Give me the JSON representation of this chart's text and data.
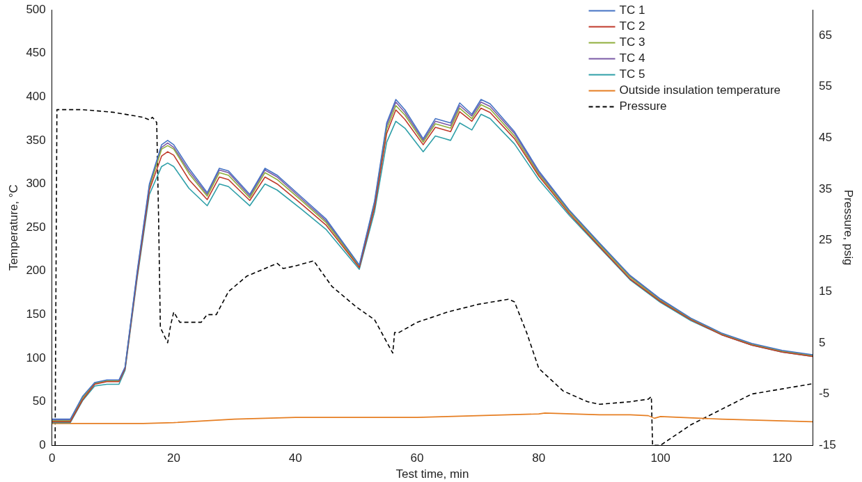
{
  "chart_data": {
    "type": "line",
    "xlabel": "Test time, min",
    "ylabel": "Temperature, °C",
    "y2label": "Pressure, psig",
    "xlim": [
      0,
      125
    ],
    "xticks": [
      0,
      20,
      40,
      60,
      80,
      100,
      120
    ],
    "ylim": [
      0,
      500
    ],
    "yticks": [
      0,
      50,
      100,
      150,
      200,
      250,
      300,
      350,
      400,
      450,
      500
    ],
    "y2lim": [
      -15,
      70
    ],
    "y2ticks": [
      -15,
      -5,
      5,
      15,
      25,
      35,
      45,
      55,
      65
    ],
    "grid": false,
    "legend": "top right",
    "marker": "none",
    "series": [
      {
        "name": "TC 1",
        "color": "#4472c4",
        "x": [
          0,
          3,
          5,
          7,
          9,
          11,
          12,
          14,
          16,
          18,
          19,
          20,
          22.5,
          25.5,
          27.5,
          29,
          32.5,
          35,
          37,
          41,
          45,
          50.5,
          53,
          55,
          56.5,
          58,
          61,
          63,
          64.5,
          65.5,
          67,
          69,
          70.5,
          72,
          76,
          80,
          85,
          90,
          95,
          100,
          105,
          110,
          115,
          120,
          125
        ],
        "values": [
          30,
          30,
          56,
          72,
          75,
          75,
          90,
          200,
          300,
          345,
          350,
          345,
          318,
          290,
          318,
          315,
          288,
          318,
          310,
          285,
          260,
          207,
          280,
          370,
          397,
          385,
          352,
          375,
          372,
          370,
          393,
          380,
          397,
          392,
          360,
          315,
          270,
          232,
          195,
          168,
          146,
          129,
          117,
          109,
          104
        ]
      },
      {
        "name": "TC 2",
        "color": "#c0392b",
        "x": [
          0,
          3,
          5,
          7,
          9,
          11,
          12,
          14,
          16,
          18,
          19,
          20,
          22.5,
          25.5,
          27.5,
          29,
          32.5,
          35,
          37,
          41,
          45,
          50.5,
          53,
          55,
          56.5,
          58,
          61,
          63,
          64.5,
          65.5,
          67,
          69,
          70.5,
          72,
          76,
          80,
          85,
          90,
          95,
          100,
          105,
          110,
          115,
          120,
          125
        ],
        "values": [
          27,
          27,
          52,
          70,
          73,
          73,
          88,
          195,
          293,
          332,
          337,
          333,
          305,
          282,
          308,
          305,
          281,
          308,
          300,
          277,
          253,
          204,
          273,
          358,
          385,
          374,
          345,
          365,
          362,
          360,
          383,
          372,
          387,
          382,
          352,
          309,
          266,
          228,
          191,
          165,
          144,
          127,
          115,
          107,
          102
        ]
      },
      {
        "name": "TC 3",
        "color": "#8fae3c",
        "x": [
          0,
          3,
          5,
          7,
          9,
          11,
          12,
          14,
          16,
          18,
          19,
          20,
          22.5,
          25.5,
          27.5,
          29,
          32.5,
          35,
          37,
          41,
          45,
          50.5,
          53,
          55,
          56.5,
          58,
          61,
          63,
          64.5,
          65.5,
          67,
          69,
          70.5,
          72,
          76,
          80,
          85,
          90,
          95,
          100,
          105,
          110,
          115,
          120,
          125
        ],
        "values": [
          28,
          28,
          54,
          71,
          74,
          74,
          89,
          197,
          296,
          340,
          344,
          340,
          312,
          286,
          313,
          310,
          284,
          313,
          305,
          281,
          256,
          205,
          276,
          363,
          390,
          379,
          348,
          369,
          366,
          364,
          387,
          375,
          391,
          386,
          355,
          311,
          268,
          230,
          193,
          166,
          145,
          128,
          116,
          108,
          103
        ]
      },
      {
        "name": "TC 4",
        "color": "#7b5aa6",
        "x": [
          0,
          3,
          5,
          7,
          9,
          11,
          12,
          14,
          16,
          18,
          19,
          20,
          22.5,
          25.5,
          27.5,
          29,
          32.5,
          35,
          37,
          41,
          45,
          50.5,
          53,
          55,
          56.5,
          58,
          61,
          63,
          64.5,
          65.5,
          67,
          69,
          70.5,
          72,
          76,
          80,
          85,
          90,
          95,
          100,
          105,
          110,
          115,
          120,
          125
        ],
        "values": [
          29,
          29,
          55,
          71,
          74,
          74,
          89,
          198,
          298,
          342,
          347,
          342,
          315,
          288,
          316,
          313,
          286,
          316,
          308,
          283,
          258,
          206,
          278,
          367,
          394,
          382,
          350,
          372,
          369,
          367,
          390,
          378,
          394,
          389,
          358,
          313,
          269,
          231,
          194,
          167,
          145,
          128,
          116,
          108,
          103
        ]
      },
      {
        "name": "TC 5",
        "color": "#2e9fa8",
        "x": [
          0,
          3,
          5,
          7,
          9,
          11,
          12,
          14,
          16,
          18,
          19,
          20,
          22.5,
          25.5,
          27.5,
          29,
          32.5,
          35,
          37,
          41,
          45,
          50.5,
          53,
          55,
          56.5,
          58,
          61,
          63,
          64.5,
          65.5,
          67,
          69,
          70.5,
          72,
          76,
          80,
          85,
          90,
          95,
          100,
          105,
          110,
          115,
          120,
          125
        ],
        "values": [
          26,
          26,
          51,
          68,
          70,
          70,
          86,
          192,
          288,
          320,
          324,
          320,
          295,
          275,
          300,
          297,
          275,
          300,
          293,
          271,
          248,
          202,
          268,
          348,
          372,
          364,
          337,
          355,
          352,
          350,
          370,
          362,
          380,
          375,
          346,
          305,
          264,
          227,
          190,
          164,
          143,
          127,
          115,
          107,
          102
        ]
      },
      {
        "name": "Outside insulation temperature",
        "color": "#e67e22",
        "x": [
          0,
          15,
          20,
          30,
          40,
          50,
          60,
          70,
          80,
          81,
          90,
          95,
          98,
          99,
          100,
          110,
          125
        ],
        "values": [
          25,
          25,
          26,
          30,
          32,
          32,
          32,
          34,
          36,
          37,
          35,
          35,
          34,
          31,
          33,
          30,
          27
        ]
      },
      {
        "name": "Pressure",
        "color": "#000000",
        "axis": "y2",
        "line_style": "dashed",
        "x": [
          0.5,
          0.8,
          5,
          10,
          15,
          16,
          16.5,
          17.2,
          17.5,
          17.8,
          19,
          19.5,
          20,
          21,
          24.5,
          25.5,
          27,
          29,
          32,
          36,
          37,
          38,
          40,
          43,
          46,
          50,
          53,
          56,
          56.3,
          57,
          60,
          65,
          70,
          75,
          76,
          78,
          80,
          84,
          88,
          90,
          95,
          98,
          98.5,
          98.7,
          100,
          105,
          110,
          115,
          120,
          125
        ],
        "values": [
          -15,
          50.5,
          50.5,
          50,
          49,
          48.5,
          49,
          48,
          30,
          8,
          5,
          8.5,
          11,
          9,
          9,
          10.5,
          10.5,
          15,
          18,
          20,
          20.5,
          19.5,
          20,
          21,
          16,
          12,
          9.5,
          3,
          7,
          7,
          9,
          11,
          12.5,
          13.5,
          13,
          7,
          0,
          -4.4,
          -6.5,
          -7,
          -6.5,
          -6,
          -5.5,
          -15,
          -15,
          -11,
          -8,
          -5,
          -4,
          -3
        ]
      }
    ]
  }
}
